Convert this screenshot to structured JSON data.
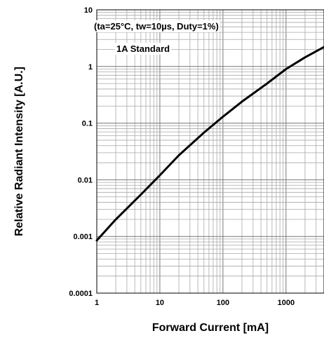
{
  "chart_data": {
    "type": "line",
    "title": "",
    "xlabel": "Forward Current [mA]",
    "ylabel": "Relative Radiant Intensity [A.U.]",
    "xscale": "log",
    "yscale": "log",
    "xlim": [
      1,
      4000
    ],
    "ylim": [
      0.0001,
      10
    ],
    "grid": true,
    "x_tick_labels": [
      "1",
      "10",
      "100",
      "1000"
    ],
    "y_tick_labels": [
      "10",
      "1",
      "0.1",
      "0.01",
      "0.001",
      "0.0001"
    ],
    "annotations": [
      "(ta=25°C, tw=10µs, Duty=1%)",
      "1A Standard"
    ],
    "series": [
      {
        "color": "#000000",
        "x": [
          1,
          2,
          5,
          10,
          20,
          50,
          100,
          200,
          500,
          1000,
          2000,
          4000
        ],
        "y": [
          0.00085,
          0.002,
          0.0055,
          0.012,
          0.027,
          0.068,
          0.13,
          0.24,
          0.5,
          0.9,
          1.45,
          2.2
        ]
      }
    ]
  }
}
